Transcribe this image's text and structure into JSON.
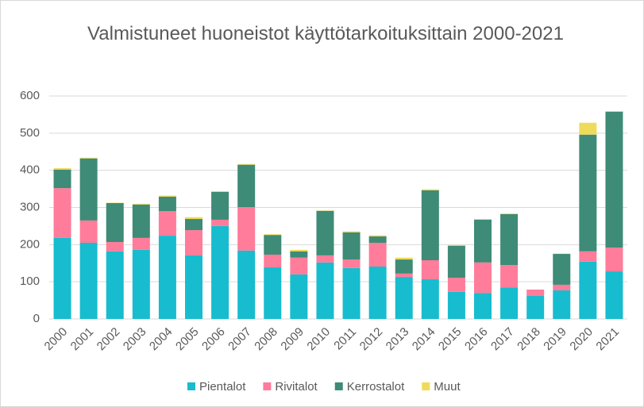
{
  "chart_data": {
    "type": "stacked_bar",
    "title": "Valmistuneet huoneistot käyttötarkoituksittain 2000-2021",
    "categories": [
      "2000",
      "2001",
      "2002",
      "2003",
      "2004",
      "2005",
      "2006",
      "2007",
      "2008",
      "2009",
      "2010",
      "2011",
      "2012",
      "2013",
      "2014",
      "2015",
      "2016",
      "2017",
      "2018",
      "2019",
      "2020",
      "2021"
    ],
    "series": [
      {
        "name": "Pientalot",
        "color": "#17bccf",
        "values": [
          218,
          205,
          182,
          186,
          224,
          171,
          250,
          184,
          139,
          120,
          152,
          137,
          141,
          113,
          107,
          73,
          70,
          85,
          62,
          77,
          154,
          128
        ]
      },
      {
        "name": "Rivitalot",
        "color": "#ff7c9a",
        "values": [
          134,
          60,
          25,
          32,
          66,
          68,
          17,
          117,
          34,
          45,
          19,
          23,
          64,
          9,
          51,
          38,
          82,
          60,
          17,
          15,
          28,
          64
        ]
      },
      {
        "name": "Kerrostalot",
        "color": "#3e8b77",
        "values": [
          50,
          167,
          105,
          90,
          39,
          30,
          75,
          114,
          53,
          17,
          120,
          73,
          17,
          38,
          188,
          86,
          115,
          137,
          0,
          83,
          314,
          366
        ]
      },
      {
        "name": "Muut",
        "color": "#efdb5b",
        "values": [
          4,
          2,
          1,
          2,
          3,
          5,
          2,
          2,
          2,
          4,
          1,
          3,
          3,
          5,
          3,
          2,
          2,
          2,
          0,
          1,
          32,
          0
        ]
      }
    ],
    "ylim": [
      0,
      600
    ],
    "yticks": [
      0,
      100,
      200,
      300,
      400,
      500,
      600
    ],
    "grid": true,
    "legend": "bottom"
  }
}
